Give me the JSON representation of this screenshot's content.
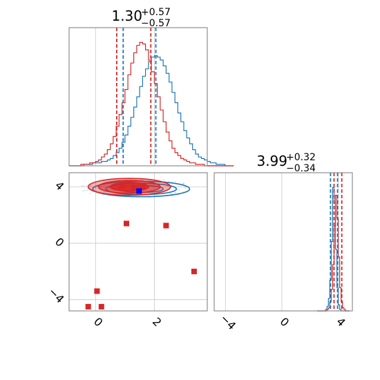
{
  "chart_data": {
    "type": "corner",
    "colors": {
      "series_a": "#1f77b4",
      "series_b": "#d62728",
      "marker_blue": "#0000ff",
      "grid": "#c8c8c8",
      "frame": "#777777"
    },
    "grid": true,
    "panels": [
      {
        "id": "hist-param-0",
        "type": "histogram",
        "title": {
          "median": "1.30",
          "plus": "+0.57",
          "minus": "−0.57"
        },
        "xlim": [
          -0.9,
          3.8
        ],
        "bin_start": -0.9,
        "bin_width": 0.1,
        "series": [
          {
            "color": "#1f77b4",
            "quantile_lines": [
              0.94,
              2.05
            ],
            "counts": [
              0,
              0,
              0,
              0,
              0,
              1,
              1,
              1,
              2,
              2,
              2,
              3,
              3,
              4,
              5,
              7,
              9,
              12,
              16,
              21,
              27,
              33,
              40,
              47,
              54,
              61,
              66,
              71,
              74,
              75,
              74,
              72,
              68,
              63,
              57,
              50,
              43,
              36,
              30,
              24,
              19,
              15,
              11,
              8,
              6,
              5,
              4,
              3,
              2,
              2,
              1,
              1,
              1,
              0,
              0,
              0
            ]
          },
          {
            "color": "#d62728",
            "quantile_lines": [
              0.72,
              1.88
            ],
            "counts": [
              0,
              0,
              0,
              0,
              1,
              1,
              1,
              2,
              2,
              3,
              4,
              6,
              8,
              11,
              15,
              20,
              27,
              35,
              43,
              52,
              62,
              70,
              77,
              82,
              84,
              83,
              79,
              72,
              64,
              56,
              47,
              38,
              30,
              23,
              17,
              12,
              9,
              7,
              5,
              4,
              3,
              2,
              2,
              1,
              1,
              1,
              0,
              0,
              0,
              0,
              0,
              0,
              0,
              0,
              0,
              0
            ]
          }
        ],
        "ticks": [
          0,
          2
        ]
      },
      {
        "id": "scatter-param-0-vs-1",
        "type": "scatter-contour",
        "xlim": [
          -0.9,
          3.8
        ],
        "ylim": [
          -4.8,
          5.0
        ],
        "xticks": [
          0,
          2
        ],
        "xticklabels": [
          "0",
          "2"
        ],
        "yticks": [
          4,
          0,
          -4
        ],
        "yticklabels": [
          "4",
          "0",
          "−4"
        ],
        "contours": [
          {
            "color": "#1f77b4",
            "center": [
              1.55,
              3.85
            ],
            "radii": [
              [
                1.65,
                0.55
              ],
              [
                1.2,
                0.4
              ],
              [
                0.75,
                0.25
              ]
            ]
          },
          {
            "color": "#d62728",
            "center": [
              1.15,
              4.0
            ],
            "radii": [
              [
                1.4,
                0.6
              ],
              [
                1.05,
                0.45
              ],
              [
                0.65,
                0.3
              ]
            ]
          }
        ],
        "markers_red": [
          [
            1.05,
            1.4
          ],
          [
            2.4,
            1.25
          ],
          [
            3.35,
            -2.0
          ],
          [
            0.05,
            -3.4
          ],
          [
            -0.25,
            -4.5
          ],
          [
            0.2,
            -4.5
          ],
          [
            1.3,
            3.95
          ],
          [
            1.6,
            4.05
          ],
          [
            0.9,
            4.05
          ]
        ],
        "markers_blue": [
          [
            1.48,
            3.7
          ]
        ]
      },
      {
        "id": "hist-param-1",
        "type": "histogram",
        "title": {
          "median": "3.99",
          "plus": "+0.32",
          "minus": "−0.34"
        },
        "xlim": [
          -4.8,
          5.0
        ],
        "bin_start": 2.5,
        "bin_width": 0.1,
        "series": [
          {
            "color": "#1f77b4",
            "quantile_lines": [
              3.45,
              3.95
            ],
            "counts": [
              0,
              0,
              0,
              0,
              0,
              0,
              1,
              3,
              8,
              20,
              45,
              80,
              70,
              40,
              15,
              4,
              1,
              0,
              0,
              0,
              0,
              0,
              0
            ]
          },
          {
            "color": "#d62728",
            "quantile_lines": [
              3.7,
              4.25
            ],
            "counts": [
              0,
              0,
              0,
              0,
              0,
              0,
              0,
              1,
              2,
              6,
              14,
              30,
              55,
              75,
              60,
              35,
              15,
              6,
              2,
              1,
              0,
              0,
              0
            ]
          }
        ],
        "ticks": [
          -4,
          0,
          4
        ],
        "ticklabels": [
          "−4",
          "0",
          "4"
        ]
      }
    ]
  }
}
